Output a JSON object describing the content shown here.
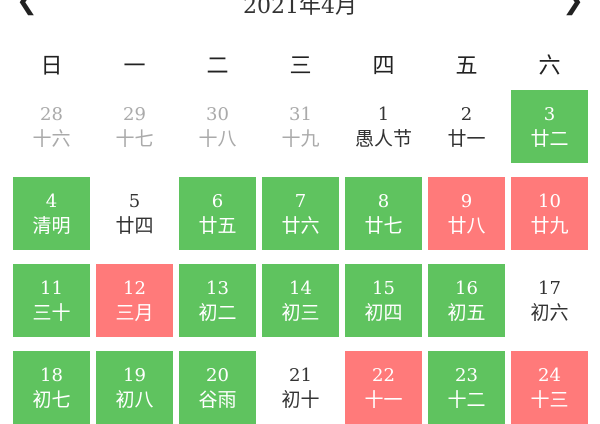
{
  "header": {
    "title": "2021年4月",
    "prev_icon": "chevron-left-icon",
    "next_icon": "chevron-right-icon"
  },
  "weekdays": [
    "日",
    "一",
    "二",
    "三",
    "四",
    "五",
    "六"
  ],
  "colors": {
    "green": "#5fc35f",
    "red": "#ff7a7a"
  },
  "days": [
    {
      "d": "28",
      "l": "十六",
      "s": "other"
    },
    {
      "d": "29",
      "l": "十七",
      "s": "other"
    },
    {
      "d": "30",
      "l": "十八",
      "s": "other"
    },
    {
      "d": "31",
      "l": "十九",
      "s": "other"
    },
    {
      "d": "1",
      "l": "愚人节",
      "s": ""
    },
    {
      "d": "2",
      "l": "廿一",
      "s": ""
    },
    {
      "d": "3",
      "l": "廿二",
      "s": "green"
    },
    {
      "d": "4",
      "l": "清明",
      "s": "green"
    },
    {
      "d": "5",
      "l": "廿四",
      "s": ""
    },
    {
      "d": "6",
      "l": "廿五",
      "s": "green"
    },
    {
      "d": "7",
      "l": "廿六",
      "s": "green"
    },
    {
      "d": "8",
      "l": "廿七",
      "s": "green"
    },
    {
      "d": "9",
      "l": "廿八",
      "s": "red"
    },
    {
      "d": "10",
      "l": "廿九",
      "s": "red"
    },
    {
      "d": "11",
      "l": "三十",
      "s": "green"
    },
    {
      "d": "12",
      "l": "三月",
      "s": "red"
    },
    {
      "d": "13",
      "l": "初二",
      "s": "green"
    },
    {
      "d": "14",
      "l": "初三",
      "s": "green"
    },
    {
      "d": "15",
      "l": "初四",
      "s": "green"
    },
    {
      "d": "16",
      "l": "初五",
      "s": "green"
    },
    {
      "d": "17",
      "l": "初六",
      "s": ""
    },
    {
      "d": "18",
      "l": "初七",
      "s": "green"
    },
    {
      "d": "19",
      "l": "初八",
      "s": "green"
    },
    {
      "d": "20",
      "l": "谷雨",
      "s": "green"
    },
    {
      "d": "21",
      "l": "初十",
      "s": ""
    },
    {
      "d": "22",
      "l": "十一",
      "s": "red"
    },
    {
      "d": "23",
      "l": "十二",
      "s": "green"
    },
    {
      "d": "24",
      "l": "十三",
      "s": "red"
    }
  ]
}
